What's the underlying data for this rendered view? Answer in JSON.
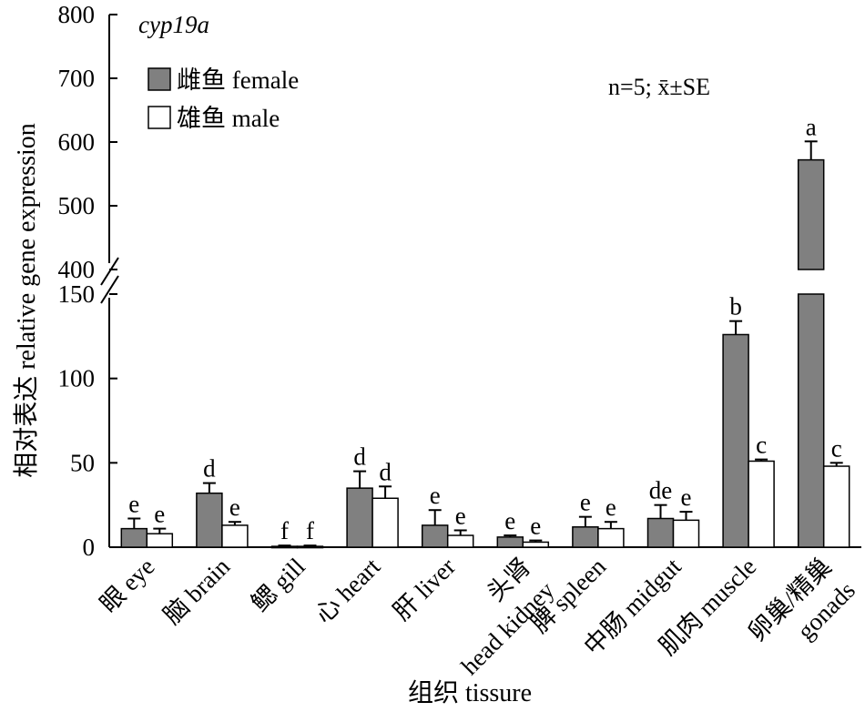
{
  "chart_data": {
    "type": "bar",
    "title": "cyp19a",
    "annotation": "n=5; x̄±SE",
    "ylabel": "相对表达 relative gene expression",
    "xlabel": "组织 tissure",
    "y_axis_break": [
      150,
      400
    ],
    "ylim": [
      0,
      800
    ],
    "y_ticks_lower": [
      "0",
      "50",
      "100",
      "150"
    ],
    "y_ticks_upper": [
      "400",
      "500",
      "600",
      "700",
      "800"
    ],
    "legend_position": "top-left",
    "colors": {
      "female": "#808080",
      "male": "#ffffff",
      "stroke": "#000000"
    },
    "categories": [
      [
        "眼 eye"
      ],
      [
        "脑 brain"
      ],
      [
        "鳃 gill"
      ],
      [
        "心 heart"
      ],
      [
        "肝 liver"
      ],
      [
        "头肾",
        "head kidney"
      ],
      [
        "脾 spleen"
      ],
      [
        "中肠 midgut"
      ],
      [
        "肌肉 muscle"
      ],
      [
        "卵巢/精巢",
        "gonads"
      ]
    ],
    "series": [
      {
        "name": "雌鱼 female",
        "values": [
          11,
          32,
          0.5,
          35,
          13,
          6,
          12,
          17,
          126,
          572
        ],
        "errors": [
          6,
          6,
          0.5,
          10,
          9,
          1,
          6,
          8,
          8,
          29
        ],
        "letters": [
          "e",
          "d",
          "f",
          "d",
          "e",
          "e",
          "e",
          "de",
          "b",
          "a"
        ]
      },
      {
        "name": "雄鱼 male",
        "values": [
          8,
          13,
          0.5,
          29,
          7,
          3,
          11,
          16,
          51,
          48
        ],
        "errors": [
          3,
          2,
          0.5,
          7,
          3,
          1,
          4,
          5,
          1,
          2
        ],
        "letters": [
          "e",
          "e",
          "f",
          "d",
          "e",
          "e",
          "e",
          "e",
          "c",
          "c"
        ]
      }
    ]
  }
}
